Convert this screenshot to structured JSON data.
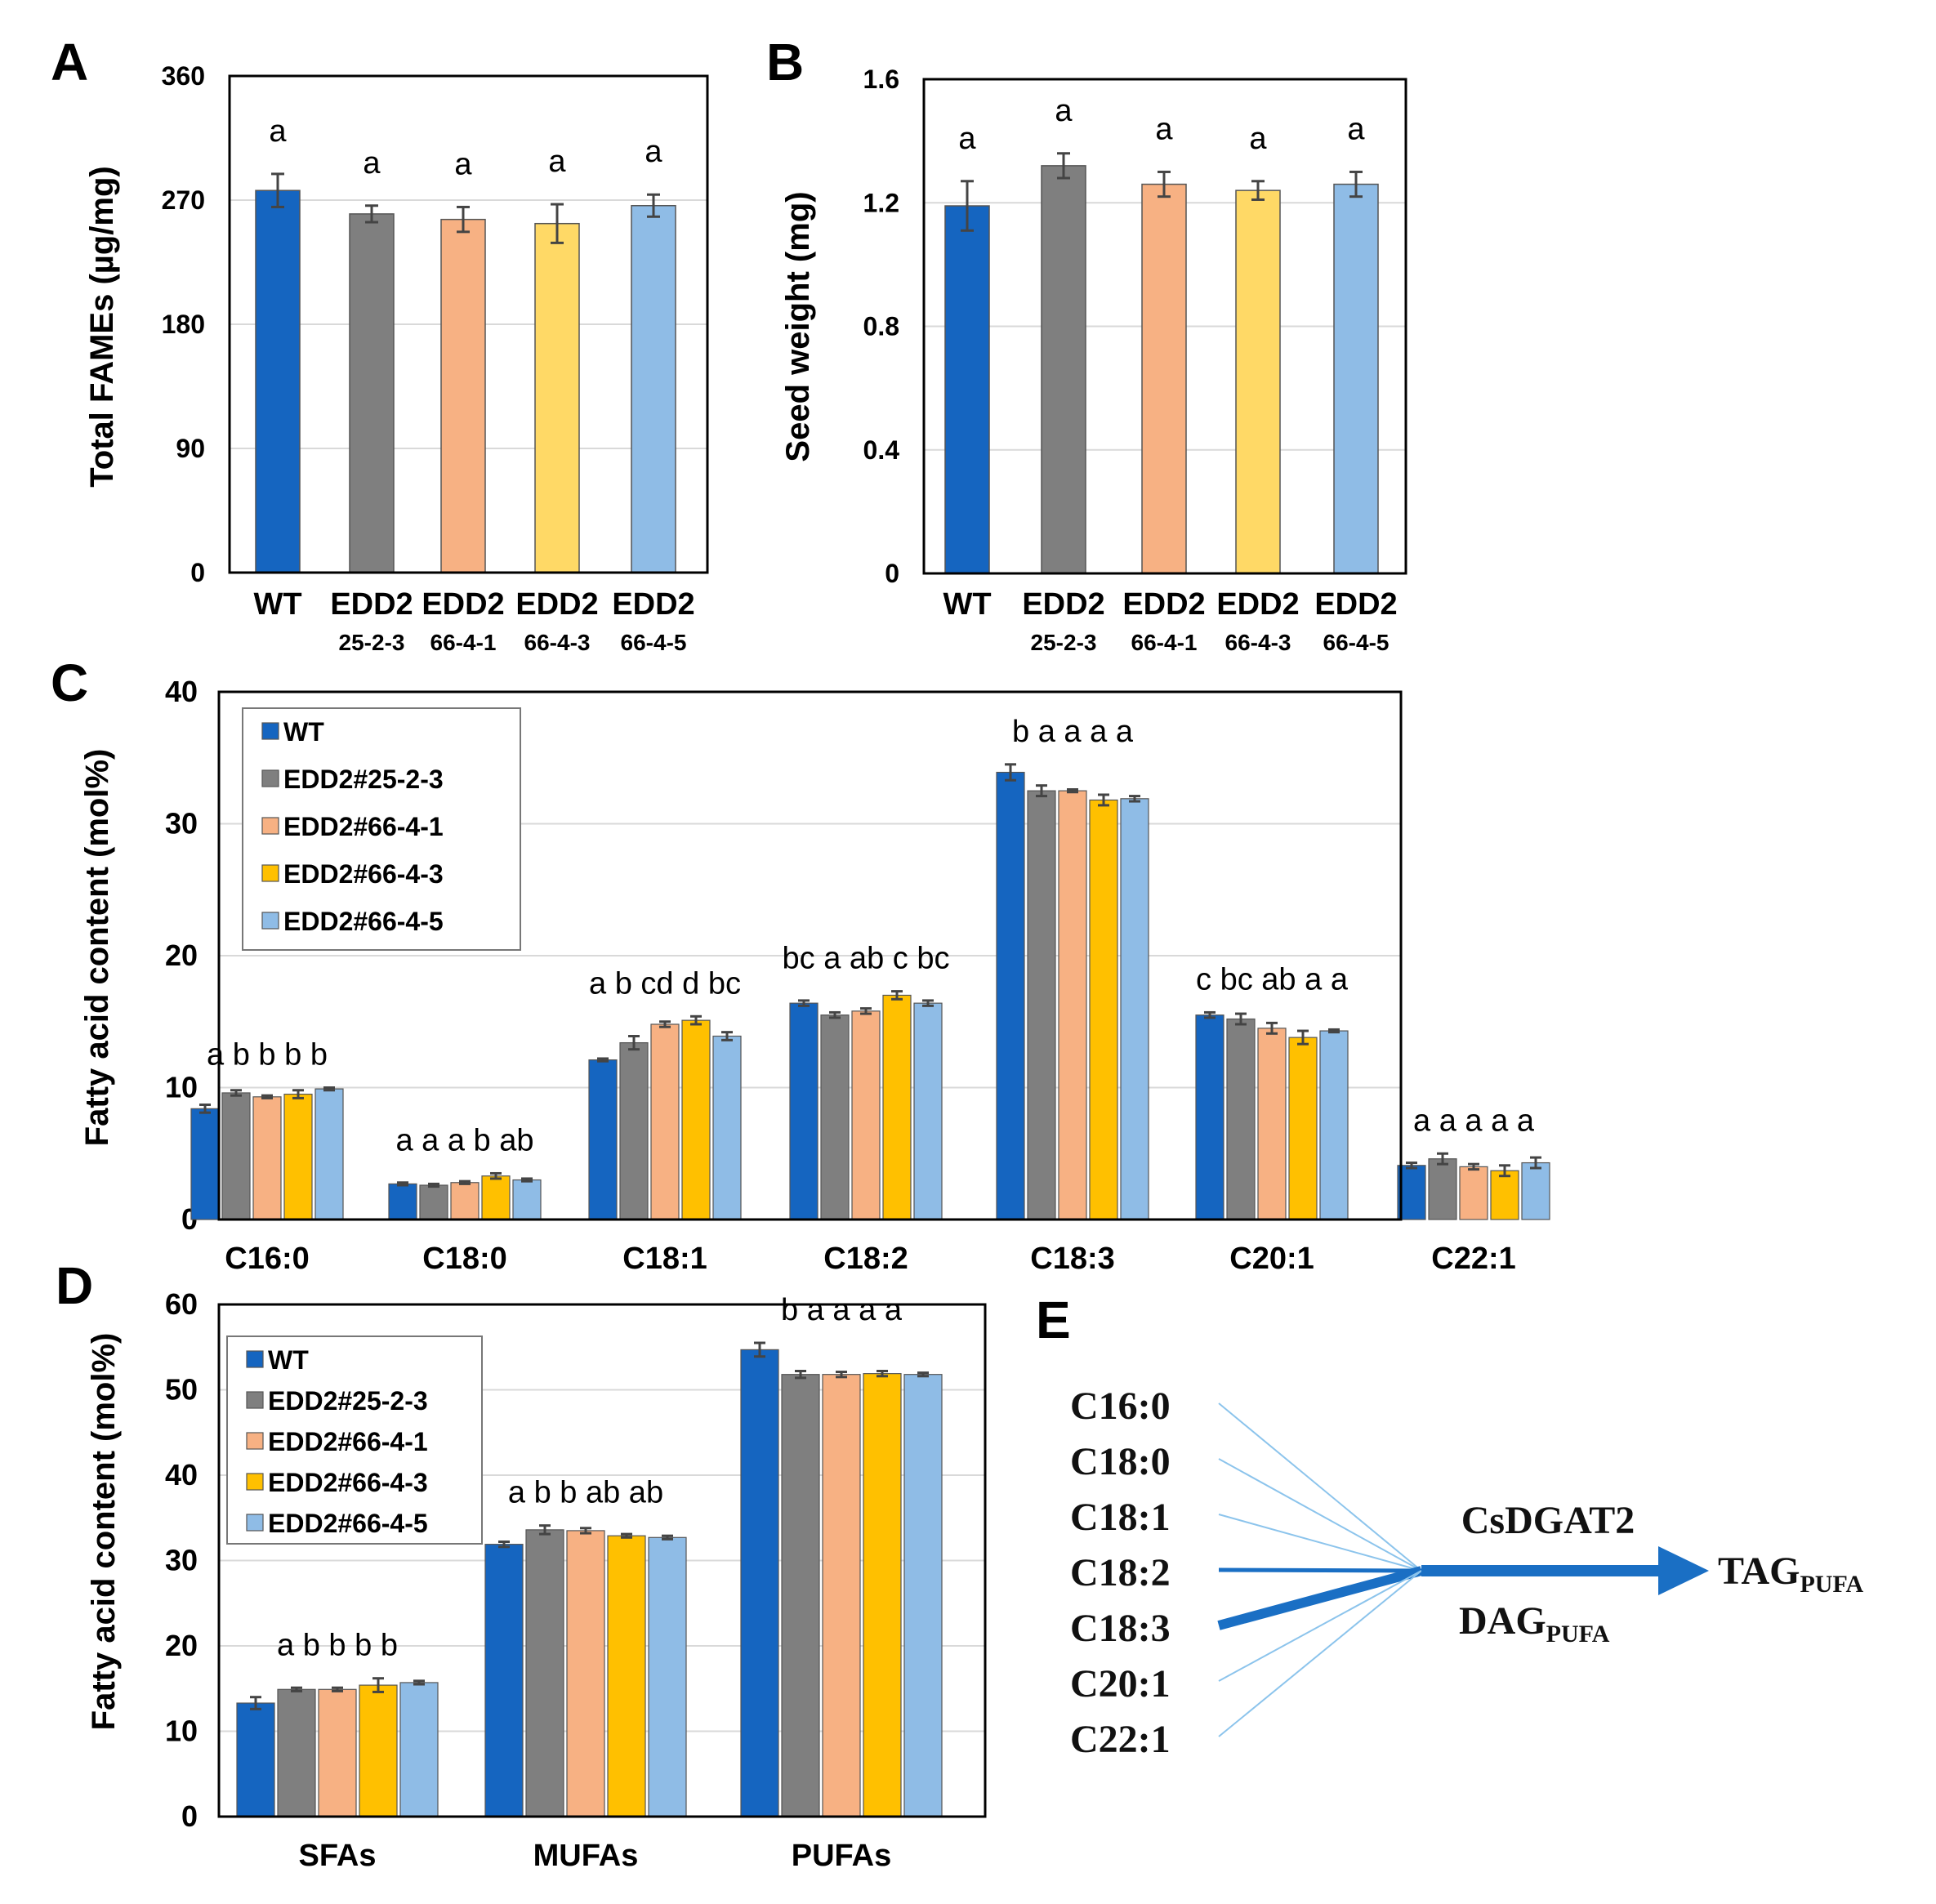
{
  "colors": {
    "WT": "#1565c0",
    "EDD2#25-2-3": "#7f7f7f",
    "EDD2#66-4-1": "#f7b183",
    "EDD2#66-4-3": "#ffc000",
    "EDD2#66-4-5": "#8fbce6",
    "EDD2#66-4-3_A": "#ffd966",
    "arrow": "#1a6fc4",
    "thin_line": "#8cc4ec"
  },
  "chart_data": [
    {
      "id": "A",
      "panel_label": "A",
      "type": "bar",
      "ylabel": "Total FAMEs (µg/mg)",
      "ylim": [
        0,
        360
      ],
      "yticks": [
        "0",
        "90",
        "180",
        "270",
        "360"
      ],
      "categories": [
        {
          "main": "WT",
          "sub": ""
        },
        {
          "main": "EDD2",
          "sub": "25-2-3"
        },
        {
          "main": "EDD2",
          "sub": "66-4-1"
        },
        {
          "main": "EDD2",
          "sub": "66-4-3"
        },
        {
          "main": "EDD2",
          "sub": "66-4-5"
        }
      ],
      "values": [
        277,
        260,
        256,
        253,
        266
      ],
      "errors": [
        12,
        6,
        9,
        14,
        8
      ],
      "letters": [
        "a",
        "a",
        "a",
        "a",
        "a"
      ]
    },
    {
      "id": "B",
      "panel_label": "B",
      "type": "bar",
      "ylabel": "Seed weight (mg)",
      "ylim": [
        0,
        1.6
      ],
      "yticks": [
        "0",
        "0.4",
        "0.8",
        "1.2",
        "1.6"
      ],
      "categories": [
        {
          "main": "WT",
          "sub": ""
        },
        {
          "main": "EDD2",
          "sub": "25-2-3"
        },
        {
          "main": "EDD2",
          "sub": "66-4-1"
        },
        {
          "main": "EDD2",
          "sub": "66-4-3"
        },
        {
          "main": "EDD2",
          "sub": "66-4-5"
        }
      ],
      "values": [
        1.19,
        1.32,
        1.26,
        1.24,
        1.26
      ],
      "errors": [
        0.08,
        0.04,
        0.04,
        0.03,
        0.04
      ],
      "letters": [
        "a",
        "a",
        "a",
        "a",
        "a"
      ]
    },
    {
      "id": "C",
      "panel_label": "C",
      "type": "bar",
      "ylabel": "Fatty acid content (mol%)",
      "ylim": [
        0,
        40
      ],
      "yticks": [
        "0",
        "10",
        "20",
        "30",
        "40"
      ],
      "categories": [
        "C16:0",
        "C18:0",
        "C18:1",
        "C18:2",
        "C18:3",
        "C20:1",
        "C22:1"
      ],
      "series": [
        {
          "name": "WT",
          "values": [
            8.4,
            2.7,
            12.1,
            16.4,
            33.9,
            15.5,
            4.1
          ],
          "errors": [
            0.3,
            0.1,
            0.1,
            0.2,
            0.6,
            0.2,
            0.2
          ]
        },
        {
          "name": "EDD2#25-2-3",
          "values": [
            9.6,
            2.6,
            13.4,
            15.5,
            32.5,
            15.2,
            4.6
          ],
          "errors": [
            0.2,
            0.1,
            0.5,
            0.2,
            0.4,
            0.4,
            0.4
          ]
        },
        {
          "name": "EDD2#66-4-1",
          "values": [
            9.3,
            2.8,
            14.8,
            15.8,
            32.5,
            14.5,
            4.0
          ],
          "errors": [
            0.1,
            0.1,
            0.2,
            0.2,
            0.1,
            0.4,
            0.2
          ]
        },
        {
          "name": "EDD2#66-4-3",
          "values": [
            9.5,
            3.3,
            15.1,
            17.0,
            31.8,
            13.8,
            3.7
          ],
          "errors": [
            0.3,
            0.2,
            0.3,
            0.3,
            0.4,
            0.5,
            0.4
          ]
        },
        {
          "name": "EDD2#66-4-5",
          "values": [
            9.9,
            3.0,
            13.9,
            16.4,
            31.9,
            14.3,
            4.3
          ],
          "errors": [
            0.1,
            0.1,
            0.3,
            0.2,
            0.2,
            0.1,
            0.4
          ]
        }
      ],
      "letters": [
        "a b b b b",
        "a a a b ab",
        "a b cd d bc",
        "bc a ab c bc",
        "b a a a a",
        "c bc ab a a",
        "a a a a a"
      ]
    },
    {
      "id": "D",
      "panel_label": "D",
      "type": "bar",
      "ylabel": "Fatty acid content (mol%)",
      "ylim": [
        0,
        60
      ],
      "yticks": [
        "0",
        "10",
        "20",
        "30",
        "40",
        "50",
        "60"
      ],
      "categories": [
        "SFAs",
        "MUFAs",
        "PUFAs"
      ],
      "series": [
        {
          "name": "WT",
          "values": [
            13.3,
            31.9,
            54.7
          ],
          "errors": [
            0.7,
            0.3,
            0.8
          ]
        },
        {
          "name": "EDD2#25-2-3",
          "values": [
            14.9,
            33.6,
            51.8
          ],
          "errors": [
            0.2,
            0.5,
            0.4
          ]
        },
        {
          "name": "EDD2#66-4-1",
          "values": [
            14.9,
            33.5,
            51.8
          ],
          "errors": [
            0.2,
            0.3,
            0.3
          ]
        },
        {
          "name": "EDD2#66-4-3",
          "values": [
            15.4,
            32.9,
            51.9
          ],
          "errors": [
            0.8,
            0.2,
            0.3
          ]
        },
        {
          "name": "EDD2#66-4-5",
          "values": [
            15.7,
            32.7,
            51.8
          ],
          "errors": [
            0.2,
            0.2,
            0.2
          ]
        }
      ],
      "letters": [
        "a b b b b",
        "a b b ab ab",
        "b a a a a"
      ]
    }
  ],
  "diagram_E": {
    "panel_label": "E",
    "fatty_acids": [
      "C16:0",
      "C18:0",
      "C18:1",
      "C18:2",
      "C18:3",
      "C20:1",
      "C22:1"
    ],
    "weights": [
      "thin",
      "thin",
      "thin",
      "medium",
      "thick",
      "thin",
      "thin"
    ],
    "enzyme": "CsDGAT2",
    "substrate_main": "DAG",
    "substrate_sub": "PUFA",
    "product_main": "TAG",
    "product_sub": "PUFA"
  }
}
